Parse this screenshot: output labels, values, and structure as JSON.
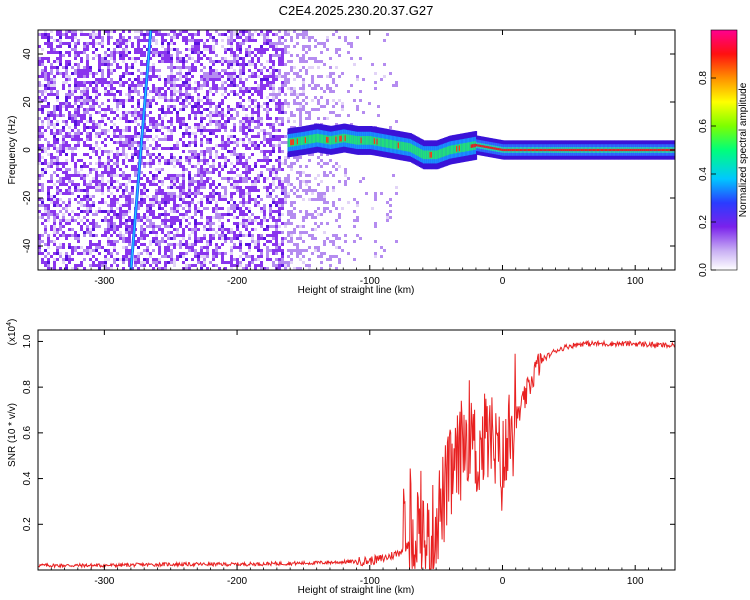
{
  "title": "C2E4.2025.230.20.37.G27",
  "chart_data": [
    {
      "type": "heatmap",
      "xlabel": "Height of straight line (km)",
      "ylabel": "Frequency (Hz)",
      "xlim": [
        -350,
        130
      ],
      "ylim": [
        -50,
        50
      ],
      "xticks": [
        -300,
        -200,
        -100,
        0,
        100
      ],
      "yticks": [
        -40,
        -20,
        0,
        20,
        40
      ],
      "colorbar": {
        "label": "Normalized spectral amplitude",
        "range": [
          0,
          1
        ],
        "ticks": [
          "0.0",
          "0.2",
          "0.4",
          "0.6",
          "0.8"
        ]
      },
      "carrier_track": {
        "x": [
          -162,
          -150,
          -140,
          -130,
          -120,
          -110,
          -100,
          -90,
          -80,
          -70,
          -60,
          -50,
          -40,
          -30,
          -20,
          -10,
          0,
          130
        ],
        "y": [
          3,
          4,
          5,
          4,
          5,
          4,
          4,
          3,
          2,
          1,
          -2,
          -2,
          0,
          1,
          2,
          1,
          0,
          0
        ]
      },
      "streak": {
        "x": [
          -280,
          -265
        ],
        "y": [
          -50,
          50
        ]
      }
    },
    {
      "type": "line",
      "xlabel": "Height of straight line (km)",
      "ylabel": "SNR (10 * v/v)",
      "scale_label": "(x10",
      "scale_exp": "4",
      "scale_close": ")",
      "xlim": [
        -350,
        130
      ],
      "ylim": [
        0,
        1.05
      ],
      "xticks": [
        -300,
        -200,
        -100,
        0,
        100
      ],
      "yticks": [
        0.2,
        0.4,
        0.6,
        0.8,
        1.0
      ],
      "series": [
        {
          "color": "#e82020",
          "x": [
            -350,
            -300,
            -250,
            -200,
            -150,
            -120,
            -100,
            -90,
            -80,
            -70,
            -65,
            -60,
            -55,
            -50,
            -45,
            -40,
            -35,
            -30,
            -25,
            -20,
            -15,
            -10,
            -5,
            0,
            5,
            10,
            15,
            20,
            25,
            30,
            40,
            50,
            60,
            80,
            100,
            130
          ],
          "y": [
            0.02,
            0.02,
            0.025,
            0.025,
            0.03,
            0.035,
            0.04,
            0.05,
            0.07,
            0.11,
            0.2,
            0.15,
            0.1,
            0.22,
            0.3,
            0.4,
            0.45,
            0.55,
            0.62,
            0.5,
            0.55,
            0.6,
            0.5,
            0.45,
            0.55,
            0.65,
            0.72,
            0.8,
            0.88,
            0.92,
            0.96,
            0.98,
            0.99,
            0.99,
            0.99,
            0.98
          ]
        }
      ]
    }
  ],
  "colors": {
    "palette": [
      "#ffffff",
      "#e2d4f7",
      "#b58cf0",
      "#8a35ee",
      "#5a12e0",
      "#2244ff",
      "#00c8ff",
      "#00ff88",
      "#66ff00",
      "#ffff00",
      "#ff8800",
      "#ff1010",
      "#ff00a0"
    ]
  }
}
